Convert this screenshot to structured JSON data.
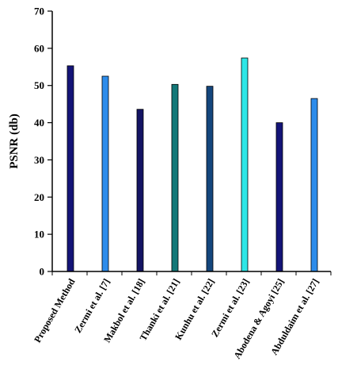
{
  "chart_data": {
    "type": "bar",
    "title": "",
    "xlabel": "",
    "ylabel": "PSNR (db)",
    "ylim": [
      0,
      70
    ],
    "yticks": [
      0,
      10,
      20,
      30,
      40,
      50,
      60,
      70
    ],
    "grid": false,
    "legend": "none",
    "categories": [
      "Proposed Method",
      "Zermi et al. [7]",
      "Makbol et al. [18]",
      "Thanki et al. [21]",
      "Kunhu et al. [22]",
      "Zermi et al. [23]",
      "Abodena & Agoyi [25]",
      "Abduldaim et al. [27]"
    ],
    "values": [
      55.3,
      52.5,
      43.6,
      50.3,
      49.8,
      57.4,
      40.0,
      46.5
    ],
    "colors": [
      "#141478",
      "#2d8ceb",
      "#141464",
      "#147878",
      "#14467d",
      "#2ee6e6",
      "#141478",
      "#2d8ceb"
    ]
  }
}
